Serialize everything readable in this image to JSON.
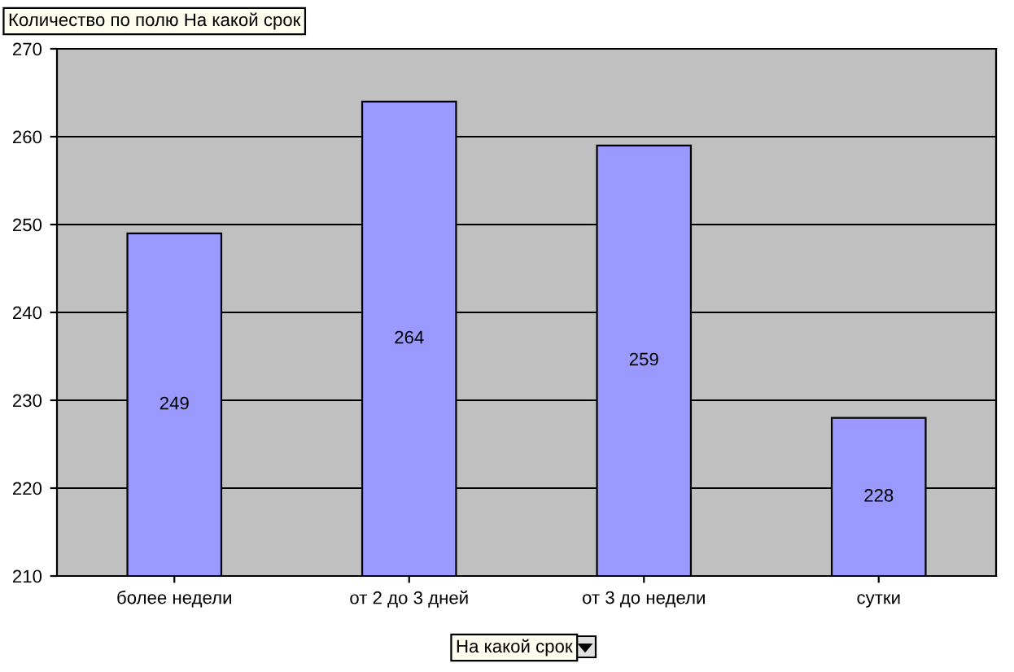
{
  "chart_data": {
    "type": "bar",
    "title": "Количество по полю На какой срок",
    "xlabel": "На какой срок",
    "categories": [
      "более недели",
      "от 2 до 3 дней",
      "от 3 до недели",
      "сутки"
    ],
    "values": [
      249,
      264,
      259,
      228
    ],
    "color": "#9999ff",
    "ylim": [
      210,
      270
    ],
    "yticks": [
      210,
      220,
      230,
      240,
      250,
      260,
      270
    ],
    "grid": "y",
    "data_labels": true
  }
}
